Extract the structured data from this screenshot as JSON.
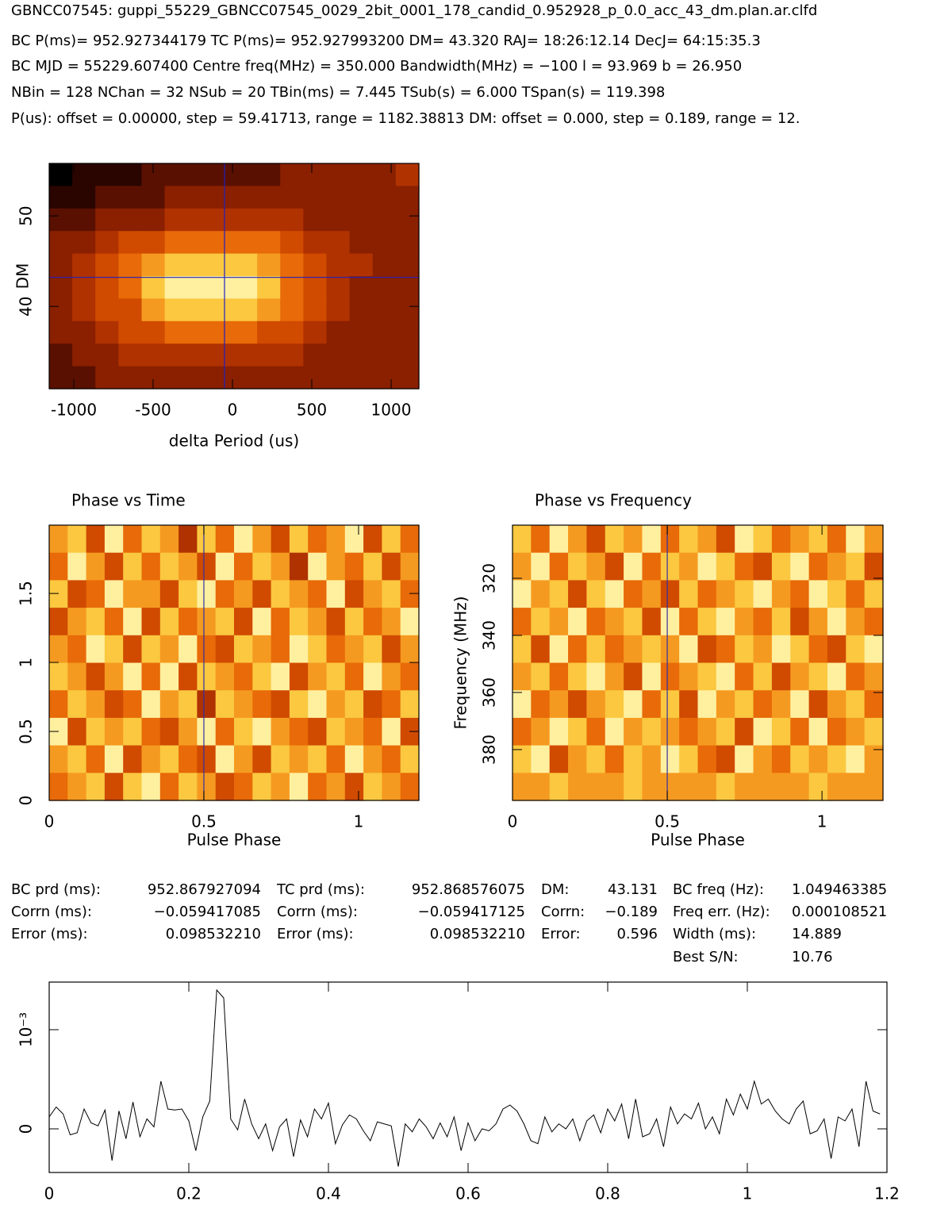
{
  "header": {
    "lines": [
      "GBNCC07545: guppi_55229_GBNCC07545_0029_2bit_0001_178_candid_0.952928_p_0.0_acc_43_dm.plan.ar.clfd",
      "BC P(ms)= 952.927344179 TC P(ms)= 952.927993200 DM= 43.320 RAJ= 18:26:12.14 DecJ= 64:15:35.3",
      "BC MJD = 55229.607400 Centre freq(MHz) = 350.000 Bandwidth(MHz) = −100 l = 93.969 b = 26.950",
      "NBin = 128 NChan = 32 NSub = 20 TBin(ms) = 7.445 TSub(s) = 6.000 TSpan(s) = 119.398",
      "P(us): offset = 0.00000, step = 59.41713, range = 1182.38813 DM: offset = 0.000, step = 0.189, range = 12."
    ]
  },
  "stats": [
    [
      [
        "BC prd (ms):",
        "952.867927094"
      ],
      [
        "Corrn (ms):",
        "−0.059417085"
      ],
      [
        "Error (ms):",
        "0.098532210"
      ]
    ],
    [
      [
        "TC prd (ms):",
        "952.868576075"
      ],
      [
        "Corrn (ms):",
        "−0.059417125"
      ],
      [
        "Error (ms):",
        "0.098532210"
      ]
    ],
    [
      [
        "DM:",
        "43.131"
      ],
      [
        "Corrn:",
        "−0.189"
      ],
      [
        "Error:",
        "0.596"
      ]
    ],
    [
      [
        "BC freq (Hz):",
        "1.049463385"
      ],
      [
        "Freq err. (Hz):",
        "0.000108521"
      ],
      [
        "Width (ms):",
        "14.889"
      ],
      [
        "Best S/N:",
        "10.76"
      ]
    ]
  ],
  "chart_data": [
    {
      "type": "heatmap",
      "xlabel": "delta Period (us)",
      "ylabel": "DM",
      "xlim": [
        -1155,
        1175
      ],
      "ylim": [
        30.9,
        55.8
      ],
      "xticks": [
        -1000,
        -500,
        0,
        500,
        1000
      ],
      "yticks": [
        40,
        50
      ],
      "marker": {
        "x": -50,
        "y": 43.2
      },
      "marker_color": "#2020c0",
      "z": [
        [
          0,
          1,
          1,
          1,
          2,
          2,
          2,
          2,
          2,
          2,
          3,
          3,
          3,
          3,
          3,
          4
        ],
        [
          1,
          1,
          2,
          2,
          2,
          3,
          3,
          3,
          3,
          3,
          3,
          3,
          3,
          3,
          3,
          3
        ],
        [
          2,
          2,
          3,
          3,
          3,
          4,
          4,
          4,
          4,
          4,
          4,
          3,
          3,
          3,
          3,
          3
        ],
        [
          3,
          3,
          4,
          5,
          5,
          6,
          6,
          6,
          6,
          6,
          5,
          4,
          4,
          3,
          3,
          3
        ],
        [
          3,
          4,
          5,
          6,
          7,
          8,
          8,
          8,
          8,
          7,
          6,
          5,
          4,
          4,
          3,
          3
        ],
        [
          3,
          4,
          5,
          6,
          8,
          9,
          9,
          9,
          9,
          8,
          6,
          5,
          4,
          3,
          3,
          3
        ],
        [
          3,
          4,
          5,
          5,
          7,
          8,
          8,
          8,
          8,
          7,
          6,
          5,
          4,
          3,
          3,
          3
        ],
        [
          3,
          3,
          4,
          5,
          5,
          6,
          6,
          6,
          6,
          5,
          5,
          4,
          3,
          3,
          3,
          3
        ],
        [
          2,
          3,
          3,
          4,
          4,
          4,
          4,
          4,
          4,
          4,
          4,
          3,
          3,
          3,
          3,
          3
        ],
        [
          2,
          2,
          3,
          3,
          3,
          3,
          3,
          3,
          3,
          3,
          3,
          3,
          3,
          3,
          3,
          3
        ]
      ]
    },
    {
      "type": "heatmap",
      "title": "Phase vs Time",
      "xlabel": "Pulse Phase",
      "xlim": [
        0,
        1.195
      ],
      "ylim": [
        0,
        1.995
      ],
      "xticks": [
        0,
        0.5,
        1
      ],
      "yticks": [
        0,
        0.5,
        1,
        1.5
      ],
      "marker": {
        "x": 0.5
      },
      "marker_color": "#3030a0",
      "z": [
        [
          7,
          8,
          5,
          9,
          6,
          8,
          7,
          4,
          8,
          6,
          9,
          7,
          5,
          8,
          6,
          7,
          9,
          5,
          8,
          6
        ],
        [
          6,
          9,
          7,
          5,
          8,
          6,
          8,
          7,
          5,
          9,
          6,
          8,
          7,
          4,
          9,
          7,
          6,
          8,
          5,
          7
        ],
        [
          8,
          5,
          6,
          9,
          7,
          7,
          5,
          8,
          9,
          6,
          7,
          5,
          8,
          7,
          6,
          9,
          5,
          7,
          8,
          6
        ],
        [
          5,
          7,
          8,
          6,
          9,
          5,
          8,
          6,
          7,
          8,
          5,
          9,
          6,
          8,
          7,
          5,
          8,
          6,
          7,
          9
        ],
        [
          7,
          6,
          9,
          8,
          5,
          8,
          7,
          9,
          6,
          5,
          8,
          7,
          6,
          9,
          8,
          6,
          7,
          8,
          5,
          7
        ],
        [
          8,
          7,
          5,
          7,
          9,
          6,
          9,
          5,
          8,
          7,
          6,
          8,
          9,
          5,
          7,
          8,
          6,
          9,
          7,
          6
        ],
        [
          6,
          8,
          7,
          5,
          6,
          9,
          7,
          8,
          4,
          8,
          7,
          6,
          5,
          8,
          9,
          7,
          8,
          5,
          6,
          8
        ],
        [
          9,
          5,
          8,
          7,
          8,
          6,
          5,
          7,
          9,
          6,
          8,
          9,
          7,
          6,
          5,
          8,
          7,
          6,
          9,
          5
        ],
        [
          7,
          8,
          6,
          9,
          5,
          7,
          8,
          6,
          5,
          9,
          7,
          5,
          8,
          7,
          8,
          6,
          9,
          7,
          6,
          8
        ],
        [
          6,
          7,
          8,
          5,
          8,
          9,
          6,
          8,
          7,
          5,
          6,
          8,
          7,
          9,
          6,
          7,
          5,
          8,
          7,
          6
        ]
      ]
    },
    {
      "type": "heatmap",
      "title": "Phase vs Frequency",
      "xlabel": "Pulse Phase",
      "ylabel": "Frequency (MHz)",
      "xlim": [
        0,
        1.197
      ],
      "ylim": [
        397.8,
        301.4
      ],
      "xticks": [
        0,
        0.5,
        1
      ],
      "yticks": [
        320,
        340,
        360,
        380
      ],
      "marker": {
        "x": 0.5
      },
      "marker_color": "#3030a0",
      "z": [
        [
          8,
          6,
          9,
          7,
          5,
          8,
          7,
          9,
          6,
          8,
          7,
          5,
          9,
          8,
          6,
          7,
          8,
          6,
          9,
          7
        ],
        [
          7,
          9,
          6,
          8,
          7,
          5,
          9,
          6,
          8,
          7,
          9,
          8,
          6,
          5,
          8,
          9,
          6,
          7,
          8,
          5
        ],
        [
          9,
          7,
          8,
          5,
          8,
          9,
          6,
          7,
          5,
          8,
          6,
          7,
          8,
          9,
          7,
          6,
          9,
          8,
          6,
          8
        ],
        [
          6,
          8,
          7,
          9,
          6,
          7,
          8,
          5,
          9,
          6,
          8,
          9,
          7,
          6,
          8,
          5,
          7,
          9,
          7,
          6
        ],
        [
          8,
          5,
          9,
          6,
          8,
          6,
          7,
          8,
          7,
          9,
          5,
          6,
          8,
          7,
          9,
          8,
          6,
          5,
          8,
          9
        ],
        [
          7,
          8,
          6,
          8,
          9,
          7,
          5,
          9,
          6,
          7,
          8,
          9,
          6,
          8,
          5,
          7,
          8,
          9,
          6,
          7
        ],
        [
          9,
          6,
          7,
          5,
          7,
          8,
          9,
          6,
          8,
          5,
          9,
          7,
          8,
          6,
          7,
          9,
          5,
          7,
          8,
          6
        ],
        [
          6,
          7,
          9,
          8,
          6,
          9,
          7,
          8,
          7,
          6,
          7,
          8,
          5,
          9,
          8,
          6,
          9,
          6,
          7,
          8
        ],
        [
          8,
          9,
          5,
          7,
          8,
          6,
          8,
          7,
          9,
          8,
          6,
          5,
          9,
          7,
          6,
          8,
          7,
          8,
          9,
          7
        ],
        [
          7,
          7,
          8,
          7,
          7,
          7,
          8,
          7,
          7,
          7,
          7,
          8,
          7,
          7,
          7,
          7,
          8,
          7,
          7,
          7
        ]
      ]
    },
    {
      "type": "line",
      "color": "#000000",
      "xlim": [
        0,
        1.2
      ],
      "ylim": [
        -0.44,
        1.48
      ],
      "xticks": [
        0,
        0.2,
        0.4,
        0.6,
        0.8,
        1,
        1.2
      ],
      "yticks": [
        0,
        {
          "value": 1,
          "label": "10⁻³"
        }
      ],
      "x": [
        0,
        0.01,
        0.02,
        0.03,
        0.04,
        0.05,
        0.06,
        0.07,
        0.08,
        0.09,
        0.1,
        0.11,
        0.12,
        0.13,
        0.14,
        0.15,
        0.16,
        0.17,
        0.18,
        0.19,
        0.2,
        0.21,
        0.22,
        0.23,
        0.24,
        0.25,
        0.26,
        0.27,
        0.28,
        0.29,
        0.3,
        0.31,
        0.32,
        0.33,
        0.34,
        0.35,
        0.36,
        0.37,
        0.38,
        0.39,
        0.4,
        0.41,
        0.42,
        0.43,
        0.44,
        0.45,
        0.46,
        0.47,
        0.48,
        0.49,
        0.5,
        0.51,
        0.52,
        0.53,
        0.54,
        0.55,
        0.56,
        0.57,
        0.58,
        0.59,
        0.6,
        0.61,
        0.62,
        0.63,
        0.64,
        0.65,
        0.66,
        0.67,
        0.68,
        0.69,
        0.7,
        0.71,
        0.72,
        0.73,
        0.74,
        0.75,
        0.76,
        0.77,
        0.78,
        0.79,
        0.8,
        0.81,
        0.82,
        0.83,
        0.84,
        0.85,
        0.86,
        0.87,
        0.88,
        0.89,
        0.9,
        0.91,
        0.92,
        0.93,
        0.94,
        0.95,
        0.96,
        0.97,
        0.98,
        0.99,
        1,
        1.01,
        1.02,
        1.03,
        1.04,
        1.05,
        1.06,
        1.07,
        1.08,
        1.09,
        1.1,
        1.11,
        1.12,
        1.13,
        1.14,
        1.15,
        1.16,
        1.17,
        1.18,
        1.19
      ],
      "values": [
        0.12,
        0.22,
        0.15,
        -0.06,
        -0.04,
        0.2,
        0.06,
        0.03,
        0.19,
        -0.32,
        0.18,
        -0.1,
        0.27,
        -0.08,
        0.1,
        0.02,
        0.48,
        0.2,
        0.19,
        0.2,
        0.08,
        -0.22,
        0.12,
        0.28,
        1.4,
        1.32,
        0.1,
        -0.01,
        0.3,
        0.05,
        -0.1,
        0.05,
        -0.22,
        0.02,
        0.1,
        -0.28,
        0.09,
        -0.08,
        0.2,
        0.1,
        0.26,
        -0.15,
        0.04,
        0.14,
        0.1,
        -0.02,
        -0.12,
        0.07,
        0.05,
        0.03,
        -0.38,
        0.05,
        -0.03,
        0.1,
        0.02,
        -0.1,
        0.06,
        -0.08,
        0.12,
        -0.22,
        0.06,
        -0.12,
        0,
        -0.02,
        0.05,
        0.2,
        0.24,
        0.18,
        0.05,
        -0.12,
        -0.15,
        0.12,
        -0.03,
        0.05,
        0,
        0.1,
        -0.12,
        0.08,
        0.14,
        -0.04,
        0.2,
        0.08,
        0.25,
        -0.1,
        0.3,
        -0.08,
        -0.05,
        0.1,
        -0.18,
        0.22,
        0.05,
        0.15,
        0.1,
        0.26,
        0,
        0.12,
        -0.05,
        0.3,
        0.14,
        0.35,
        0.2,
        0.48,
        0.25,
        0.3,
        0.18,
        0.1,
        0.05,
        0.2,
        0.28,
        -0.05,
        -0.02,
        0.1,
        -0.3,
        0.12,
        0.08,
        0.2,
        -0.18,
        0.48,
        0.18,
        0.15
      ]
    }
  ]
}
